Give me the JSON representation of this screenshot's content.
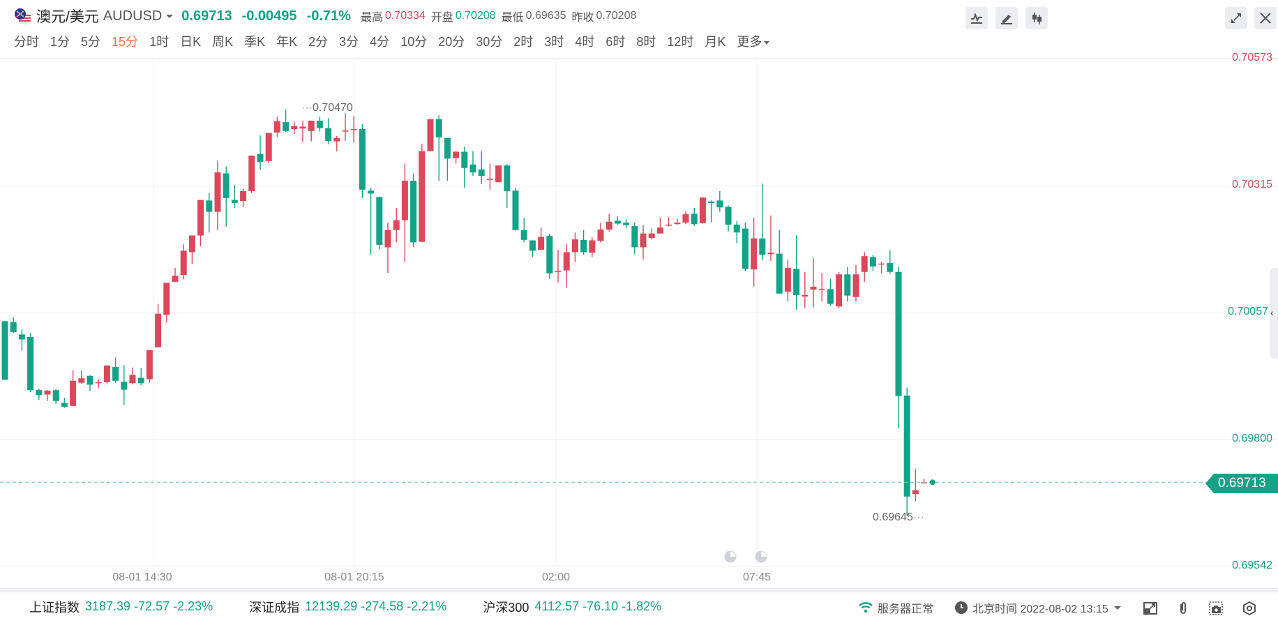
{
  "header": {
    "name": "澳元/美元",
    "symbol": "AUDUSD",
    "price": "0.69713",
    "change": "-0.00495",
    "change_pct": "-0.71%",
    "stats": [
      {
        "label": "最高",
        "value": "0.70334",
        "color": "#d9485b"
      },
      {
        "label": "开盘",
        "value": "0.70208",
        "color": "#14a288"
      },
      {
        "label": "最低",
        "value": "0.69635",
        "color": "#666666"
      },
      {
        "label": "昨收",
        "value": "0.70208",
        "color": "#666666"
      }
    ]
  },
  "periods": [
    "分时",
    "1分",
    "5分",
    "15分",
    "1时",
    "日K",
    "周K",
    "季K",
    "年K",
    "2分",
    "3分",
    "4分",
    "10分",
    "20分",
    "30分",
    "2时",
    "3时",
    "4时",
    "6时",
    "8时",
    "12时",
    "月K",
    "更多"
  ],
  "active_period": "15分",
  "toolbar": {
    "icons": [
      "indicator-icon",
      "draw-icon",
      "candle-type-icon",
      "fullscreen-icon",
      "close-icon"
    ]
  },
  "colors": {
    "up": "#d9485b",
    "down": "#14a288",
    "grid": "#f0f1f3",
    "last_line": "#7fcfbf"
  },
  "chart_data": {
    "type": "candlestick",
    "title": "澳元/美元 AUDUSD 15分",
    "y_ticks": [
      "0.70573",
      "0.70315",
      "0.70057",
      "0.69800",
      "0.69542"
    ],
    "y_tick_colors": [
      "#d9485b",
      "#d9485b",
      "#14a288",
      "#14a288",
      "#14a288"
    ],
    "ylim": [
      0.69542,
      0.70573
    ],
    "x_ticks": [
      {
        "label": "08-01 14:30",
        "x": 220
      },
      {
        "label": "08-01 20:15",
        "x": 508
      },
      {
        "label": "02:00",
        "x": 797
      },
      {
        "label": "07:45",
        "x": 1085
      }
    ],
    "annotations": [
      {
        "label": "0.70470",
        "type": "high"
      },
      {
        "label": "0.69645",
        "type": "low"
      }
    ],
    "last_price": "0.69713",
    "candles": [
      {
        "o": 0.7004,
        "h": 0.7004,
        "c": 0.69921,
        "l": 0.69921
      },
      {
        "o": 0.70038,
        "h": 0.70048,
        "c": 0.70018,
        "l": 0.70016
      },
      {
        "o": 0.70013,
        "h": 0.70023,
        "c": 0.70003,
        "l": 0.6998
      },
      {
        "o": 0.70008,
        "h": 0.70016,
        "c": 0.699,
        "l": 0.69896
      },
      {
        "o": 0.699,
        "h": 0.69903,
        "c": 0.6989,
        "l": 0.6988
      },
      {
        "o": 0.69891,
        "h": 0.699,
        "c": 0.69899,
        "l": 0.69878
      },
      {
        "o": 0.699,
        "h": 0.69902,
        "c": 0.69878,
        "l": 0.69872
      },
      {
        "o": 0.69874,
        "h": 0.69884,
        "c": 0.69866,
        "l": 0.69864
      },
      {
        "o": 0.69868,
        "h": 0.6994,
        "c": 0.69919,
        "l": 0.69867
      },
      {
        "o": 0.69915,
        "h": 0.6994,
        "c": 0.69924,
        "l": 0.69913
      },
      {
        "o": 0.69929,
        "h": 0.6993,
        "c": 0.69911,
        "l": 0.69898
      },
      {
        "o": 0.69914,
        "h": 0.69922,
        "c": 0.69916,
        "l": 0.69904
      },
      {
        "o": 0.69916,
        "h": 0.6995,
        "c": 0.6995,
        "l": 0.69913
      },
      {
        "o": 0.69947,
        "h": 0.69966,
        "c": 0.69919,
        "l": 0.69915
      },
      {
        "o": 0.69917,
        "h": 0.69951,
        "c": 0.69901,
        "l": 0.6987
      },
      {
        "o": 0.69914,
        "h": 0.69946,
        "c": 0.69931,
        "l": 0.69912
      },
      {
        "o": 0.69925,
        "h": 0.69945,
        "c": 0.69914,
        "l": 0.6991
      },
      {
        "o": 0.69922,
        "h": 0.69978,
        "c": 0.69981,
        "l": 0.69915
      },
      {
        "o": 0.69987,
        "h": 0.70075,
        "c": 0.70055,
        "l": 0.69987
      },
      {
        "o": 0.70053,
        "h": 0.70117,
        "c": 0.70118,
        "l": 0.70037
      },
      {
        "o": 0.7012,
        "h": 0.70148,
        "c": 0.70132,
        "l": 0.70124
      },
      {
        "o": 0.70134,
        "h": 0.70196,
        "c": 0.70183,
        "l": 0.70125
      },
      {
        "o": 0.7018,
        "h": 0.702,
        "c": 0.70214,
        "l": 0.70156
      },
      {
        "o": 0.70214,
        "h": 0.7024,
        "c": 0.70286,
        "l": 0.70192
      },
      {
        "o": 0.70285,
        "h": 0.703,
        "c": 0.70262,
        "l": 0.7022
      },
      {
        "o": 0.70262,
        "h": 0.70366,
        "c": 0.70342,
        "l": 0.70225
      },
      {
        "o": 0.7034,
        "h": 0.70354,
        "c": 0.7029,
        "l": 0.70232
      },
      {
        "o": 0.70286,
        "h": 0.70316,
        "c": 0.7028,
        "l": 0.7027
      },
      {
        "o": 0.70284,
        "h": 0.70309,
        "c": 0.70304,
        "l": 0.70272
      },
      {
        "o": 0.70304,
        "h": 0.70372,
        "c": 0.70376,
        "l": 0.703
      },
      {
        "o": 0.70379,
        "h": 0.70417,
        "c": 0.70363,
        "l": 0.70347
      },
      {
        "o": 0.70365,
        "h": 0.704,
        "c": 0.70422,
        "l": 0.70361
      },
      {
        "o": 0.70423,
        "h": 0.70455,
        "c": 0.70446,
        "l": 0.70414
      },
      {
        "o": 0.70444,
        "h": 0.7047,
        "c": 0.70426,
        "l": 0.70424
      },
      {
        "o": 0.7043,
        "h": 0.70445,
        "c": 0.70436,
        "l": 0.7042
      },
      {
        "o": 0.70431,
        "h": 0.70446,
        "c": 0.70435,
        "l": 0.70404
      },
      {
        "o": 0.70426,
        "h": 0.70447,
        "c": 0.70447,
        "l": 0.70405
      },
      {
        "o": 0.70447,
        "h": 0.70455,
        "c": 0.70432,
        "l": 0.70425
      },
      {
        "o": 0.70432,
        "h": 0.70452,
        "c": 0.70406,
        "l": 0.70399
      },
      {
        "o": 0.70405,
        "h": 0.70416,
        "c": 0.70412,
        "l": 0.70385
      },
      {
        "o": 0.70426,
        "h": 0.70462,
        "c": 0.70427,
        "l": 0.70406
      },
      {
        "o": 0.70428,
        "h": 0.70456,
        "c": 0.7043,
        "l": 0.70402
      },
      {
        "o": 0.7043,
        "h": 0.7044,
        "c": 0.70307,
        "l": 0.7029
      },
      {
        "o": 0.70305,
        "h": 0.70311,
        "c": 0.70299,
        "l": 0.70175
      },
      {
        "o": 0.70292,
        "h": 0.70272,
        "c": 0.70195,
        "l": 0.70186
      },
      {
        "o": 0.7019,
        "h": 0.7024,
        "c": 0.70225,
        "l": 0.70138
      },
      {
        "o": 0.70225,
        "h": 0.7027,
        "c": 0.70245,
        "l": 0.702
      },
      {
        "o": 0.70245,
        "h": 0.7036,
        "c": 0.70325,
        "l": 0.7016
      },
      {
        "o": 0.70325,
        "h": 0.7034,
        "c": 0.702,
        "l": 0.7019
      },
      {
        "o": 0.70201,
        "h": 0.704,
        "c": 0.70385,
        "l": 0.70201
      },
      {
        "o": 0.70385,
        "h": 0.7045,
        "c": 0.7045,
        "l": 0.70386
      },
      {
        "o": 0.7045,
        "h": 0.70458,
        "c": 0.70413,
        "l": 0.70325
      },
      {
        "o": 0.70412,
        "h": 0.70405,
        "c": 0.7037,
        "l": 0.70325
      },
      {
        "o": 0.70371,
        "h": 0.70385,
        "c": 0.70384,
        "l": 0.7036
      },
      {
        "o": 0.70384,
        "h": 0.70394,
        "c": 0.70351,
        "l": 0.70311
      },
      {
        "o": 0.70358,
        "h": 0.70385,
        "c": 0.70342,
        "l": 0.70335
      },
      {
        "o": 0.70348,
        "h": 0.70385,
        "c": 0.70335,
        "l": 0.70318
      },
      {
        "o": 0.70329,
        "h": 0.7036,
        "c": 0.70329,
        "l": 0.70307
      },
      {
        "o": 0.70322,
        "h": 0.70356,
        "c": 0.70356,
        "l": 0.70323
      },
      {
        "o": 0.70356,
        "h": 0.70359,
        "c": 0.70304,
        "l": 0.7027
      },
      {
        "o": 0.70305,
        "h": 0.7031,
        "c": 0.70225,
        "l": 0.70224
      },
      {
        "o": 0.70225,
        "h": 0.70249,
        "c": 0.70205,
        "l": 0.702
      },
      {
        "o": 0.70204,
        "h": 0.70204,
        "c": 0.70183,
        "l": 0.7017
      },
      {
        "o": 0.70185,
        "h": 0.7023,
        "c": 0.70211,
        "l": 0.70185
      },
      {
        "o": 0.70213,
        "h": 0.70217,
        "c": 0.70137,
        "l": 0.70126
      },
      {
        "o": 0.7014,
        "h": 0.70185,
        "c": 0.70142,
        "l": 0.70118
      },
      {
        "o": 0.70143,
        "h": 0.70197,
        "c": 0.7018,
        "l": 0.70108
      },
      {
        "o": 0.7018,
        "h": 0.7022,
        "c": 0.70206,
        "l": 0.7016
      },
      {
        "o": 0.70205,
        "h": 0.70225,
        "c": 0.7018,
        "l": 0.70175
      },
      {
        "o": 0.70179,
        "h": 0.7021,
        "c": 0.70204,
        "l": 0.7017
      },
      {
        "o": 0.70203,
        "h": 0.7024,
        "c": 0.70226,
        "l": 0.702
      },
      {
        "o": 0.70226,
        "h": 0.70258,
        "c": 0.70242,
        "l": 0.70222
      },
      {
        "o": 0.70244,
        "h": 0.70253,
        "c": 0.70238,
        "l": 0.70235
      },
      {
        "o": 0.7024,
        "h": 0.70247,
        "c": 0.70235,
        "l": 0.70229
      },
      {
        "o": 0.70233,
        "h": 0.7024,
        "c": 0.7019,
        "l": 0.70176
      },
      {
        "o": 0.7019,
        "h": 0.70235,
        "c": 0.70218,
        "l": 0.70165
      },
      {
        "o": 0.70209,
        "h": 0.70228,
        "c": 0.70218,
        "l": 0.70206
      },
      {
        "o": 0.70218,
        "h": 0.7025,
        "c": 0.7023,
        "l": 0.70218
      },
      {
        "o": 0.70235,
        "h": 0.70251,
        "c": 0.70236,
        "l": 0.70232
      },
      {
        "o": 0.70237,
        "h": 0.70248,
        "c": 0.7024,
        "l": 0.70236
      },
      {
        "o": 0.7024,
        "h": 0.70263,
        "c": 0.70257,
        "l": 0.70237
      },
      {
        "o": 0.70258,
        "h": 0.7027,
        "c": 0.70237,
        "l": 0.70233
      },
      {
        "o": 0.70239,
        "h": 0.70289,
        "c": 0.70291,
        "l": 0.70238
      },
      {
        "o": 0.70283,
        "h": 0.70285,
        "c": 0.7028,
        "l": 0.70241
      },
      {
        "o": 0.70285,
        "h": 0.70304,
        "c": 0.70271,
        "l": 0.70262
      },
      {
        "o": 0.70272,
        "h": 0.70275,
        "c": 0.70236,
        "l": 0.70222
      },
      {
        "o": 0.70236,
        "h": 0.70243,
        "c": 0.7022,
        "l": 0.70198
      },
      {
        "o": 0.70228,
        "h": 0.7024,
        "c": 0.70146,
        "l": 0.70141
      },
      {
        "o": 0.70145,
        "h": 0.7025,
        "c": 0.70208,
        "l": 0.7011
      },
      {
        "o": 0.70208,
        "h": 0.70319,
        "c": 0.70175,
        "l": 0.70163
      },
      {
        "o": 0.70176,
        "h": 0.70254,
        "c": 0.70179,
        "l": 0.70162
      },
      {
        "o": 0.70177,
        "h": 0.70225,
        "c": 0.70096,
        "l": 0.70096
      },
      {
        "o": 0.701,
        "h": 0.70165,
        "c": 0.70148,
        "l": 0.7008
      },
      {
        "o": 0.70146,
        "h": 0.70214,
        "c": 0.70093,
        "l": 0.70063
      },
      {
        "o": 0.7009,
        "h": 0.7014,
        "c": 0.70093,
        "l": 0.70067
      },
      {
        "o": 0.70104,
        "h": 0.70168,
        "c": 0.7011,
        "l": 0.70068
      },
      {
        "o": 0.70105,
        "h": 0.70138,
        "c": 0.70105,
        "l": 0.7008
      },
      {
        "o": 0.70105,
        "h": 0.70126,
        "c": 0.70075,
        "l": 0.70071
      },
      {
        "o": 0.7007,
        "h": 0.7014,
        "c": 0.70135,
        "l": 0.70066
      },
      {
        "o": 0.70135,
        "h": 0.7015,
        "c": 0.70092,
        "l": 0.7008
      },
      {
        "o": 0.70089,
        "h": 0.70154,
        "c": 0.70135,
        "l": 0.7008
      },
      {
        "o": 0.7014,
        "h": 0.7018,
        "c": 0.70172,
        "l": 0.7012
      },
      {
        "o": 0.7017,
        "h": 0.70174,
        "c": 0.70151,
        "l": 0.70142
      },
      {
        "o": 0.70155,
        "h": 0.7016,
        "c": 0.70157,
        "l": 0.70138
      },
      {
        "o": 0.70158,
        "h": 0.70184,
        "c": 0.7014,
        "l": 0.70136
      },
      {
        "o": 0.7014,
        "h": 0.70151,
        "c": 0.69888,
        "l": 0.69822
      },
      {
        "o": 0.69889,
        "h": 0.69905,
        "c": 0.69684,
        "l": 0.69645
      },
      {
        "o": 0.69689,
        "h": 0.6974,
        "c": 0.69697,
        "l": 0.69675
      },
      {
        "o": 0.69713,
        "h": 0.6972,
        "c": 0.69713,
        "l": 0.69713
      }
    ]
  },
  "footer": {
    "indices": [
      {
        "name": "上证指数",
        "value": "3187.39 -72.57 -2.23%"
      },
      {
        "name": "深证成指",
        "value": "12139.29 -274.58 -2.21%"
      },
      {
        "name": "沪深300",
        "value": "4112.57 -76.10 -1.82%"
      }
    ],
    "server_status": "服务器正常",
    "time_label": "北京时间 2022-08-02 13:15"
  }
}
